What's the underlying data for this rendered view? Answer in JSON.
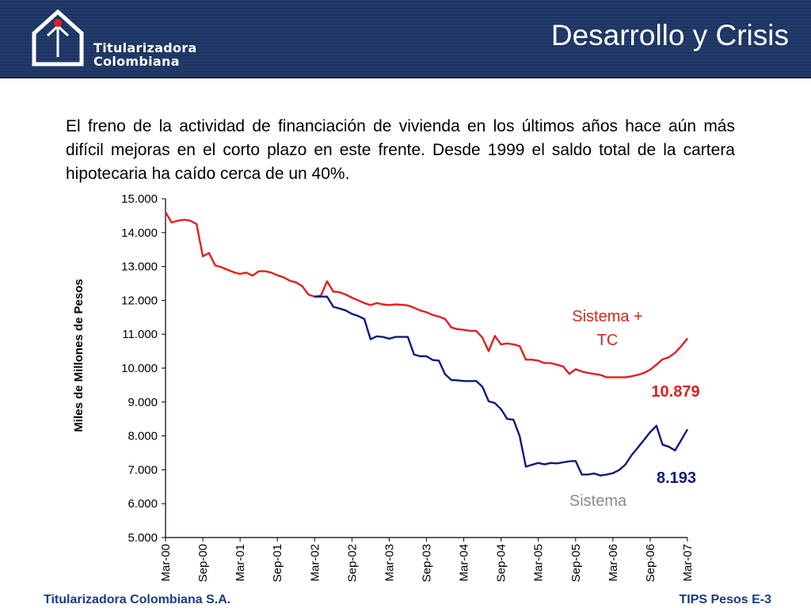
{
  "header": {
    "logo_line1": "Titularizadora",
    "logo_line2": "Colombiana",
    "title": "Desarrollo y Crisis",
    "logo_icon": "house-with-arrow-icon"
  },
  "intro_text": "El freno de la actividad de financiación de vivienda en los últimos años hace aún más difícil mejoras en el corto plazo en este frente. Desde 1999 el saldo total de la cartera hipotecaria ha caído cerca de un 40%.",
  "footer": {
    "left": "Titularizadora Colombiana S.A.",
    "right": "TIPS Pesos E-3"
  },
  "colors": {
    "header_bg": "#1c3564",
    "series_red": "#e0201c",
    "series_blue": "#0c1a7c",
    "footer_text": "#1c3a84",
    "label_grey": "#8c8c8c"
  },
  "chart_data": {
    "type": "line",
    "ylabel": "Miles de Millones de Pesos",
    "xlabel": "",
    "ylim": [
      5000,
      15000
    ],
    "y_ticks": [
      5000,
      6000,
      7000,
      8000,
      9000,
      10000,
      11000,
      12000,
      13000,
      14000,
      15000
    ],
    "y_tick_labels": [
      "5.000",
      "6.000",
      "7.000",
      "8.000",
      "9.000",
      "10.000",
      "11.000",
      "12.000",
      "13.000",
      "14.000",
      "15.000"
    ],
    "x_tick_labels": [
      "Mar-00",
      "Sep-00",
      "Mar-01",
      "Sep-01",
      "Mar-02",
      "Sep-02",
      "Mar-03",
      "Sep-03",
      "Mar-04",
      "Sep-04",
      "Mar-05",
      "Sep-05",
      "Mar-06",
      "Sep-06",
      "Mar-07"
    ],
    "x_range_months": [
      0,
      84
    ],
    "grid": false,
    "series": [
      {
        "name": "Sistema + TC",
        "label_lines": [
          "Sistema +",
          "TC"
        ],
        "end_value_label": "10.879",
        "color": "#e0201c",
        "points": [
          [
            0,
            14600
          ],
          [
            1,
            14300
          ],
          [
            2,
            14350
          ],
          [
            3,
            14380
          ],
          [
            4,
            14350
          ],
          [
            5,
            14250
          ],
          [
            6,
            13300
          ],
          [
            7,
            13400
          ],
          [
            8,
            13030
          ],
          [
            9,
            12980
          ],
          [
            10,
            12900
          ],
          [
            11,
            12830
          ],
          [
            12,
            12780
          ],
          [
            13,
            12820
          ],
          [
            14,
            12730
          ],
          [
            15,
            12860
          ],
          [
            16,
            12860
          ],
          [
            17,
            12820
          ],
          [
            18,
            12740
          ],
          [
            19,
            12680
          ],
          [
            20,
            12580
          ],
          [
            21,
            12530
          ],
          [
            22,
            12420
          ],
          [
            23,
            12170
          ],
          [
            24,
            12110
          ],
          [
            25,
            12140
          ],
          [
            26,
            12560
          ],
          [
            27,
            12260
          ],
          [
            28,
            12240
          ],
          [
            29,
            12170
          ],
          [
            30,
            12080
          ],
          [
            31,
            12000
          ],
          [
            32,
            11920
          ],
          [
            33,
            11860
          ],
          [
            34,
            11920
          ],
          [
            35,
            11880
          ],
          [
            36,
            11860
          ],
          [
            37,
            11880
          ],
          [
            38,
            11870
          ],
          [
            39,
            11850
          ],
          [
            40,
            11780
          ],
          [
            41,
            11700
          ],
          [
            42,
            11650
          ],
          [
            43,
            11570
          ],
          [
            44,
            11520
          ],
          [
            45,
            11450
          ],
          [
            46,
            11200
          ],
          [
            47,
            11150
          ],
          [
            48,
            11130
          ],
          [
            49,
            11100
          ],
          [
            50,
            11100
          ],
          [
            51,
            10900
          ],
          [
            52,
            10500
          ],
          [
            53,
            10950
          ],
          [
            54,
            10700
          ],
          [
            55,
            10730
          ],
          [
            56,
            10700
          ],
          [
            57,
            10650
          ],
          [
            58,
            10250
          ],
          [
            59,
            10250
          ],
          [
            60,
            10220
          ],
          [
            61,
            10150
          ],
          [
            62,
            10150
          ],
          [
            63,
            10100
          ],
          [
            64,
            10050
          ],
          [
            65,
            9830
          ],
          [
            66,
            9970
          ],
          [
            67,
            9900
          ],
          [
            68,
            9860
          ],
          [
            69,
            9830
          ],
          [
            70,
            9800
          ],
          [
            71,
            9730
          ],
          [
            72,
            9730
          ],
          [
            73,
            9730
          ],
          [
            74,
            9730
          ],
          [
            75,
            9760
          ],
          [
            76,
            9800
          ],
          [
            77,
            9860
          ],
          [
            78,
            9950
          ],
          [
            79,
            10100
          ],
          [
            80,
            10260
          ],
          [
            81,
            10320
          ],
          [
            82,
            10450
          ],
          [
            83,
            10650
          ],
          [
            84,
            10879
          ]
        ]
      },
      {
        "name": "Sistema",
        "label_lines": [
          "Sistema"
        ],
        "end_value_label": "8.193",
        "color": "#0c1a7c",
        "points": [
          [
            24,
            12110
          ],
          [
            25,
            12110
          ],
          [
            26,
            12110
          ],
          [
            27,
            11810
          ],
          [
            28,
            11760
          ],
          [
            29,
            11700
          ],
          [
            30,
            11600
          ],
          [
            31,
            11540
          ],
          [
            32,
            11450
          ],
          [
            33,
            10850
          ],
          [
            34,
            10940
          ],
          [
            35,
            10920
          ],
          [
            36,
            10870
          ],
          [
            37,
            10920
          ],
          [
            38,
            10920
          ],
          [
            39,
            10920
          ],
          [
            40,
            10400
          ],
          [
            41,
            10350
          ],
          [
            42,
            10350
          ],
          [
            43,
            10240
          ],
          [
            44,
            10220
          ],
          [
            45,
            9820
          ],
          [
            46,
            9650
          ],
          [
            47,
            9640
          ],
          [
            48,
            9620
          ],
          [
            49,
            9620
          ],
          [
            50,
            9620
          ],
          [
            51,
            9450
          ],
          [
            52,
            9020
          ],
          [
            53,
            8970
          ],
          [
            54,
            8790
          ],
          [
            55,
            8500
          ],
          [
            56,
            8480
          ],
          [
            57,
            7990
          ],
          [
            58,
            7090
          ],
          [
            59,
            7150
          ],
          [
            60,
            7200
          ],
          [
            61,
            7160
          ],
          [
            62,
            7200
          ],
          [
            63,
            7190
          ],
          [
            64,
            7220
          ],
          [
            65,
            7250
          ],
          [
            66,
            7260
          ],
          [
            67,
            6860
          ],
          [
            68,
            6860
          ],
          [
            69,
            6890
          ],
          [
            70,
            6830
          ],
          [
            71,
            6860
          ],
          [
            72,
            6900
          ],
          [
            73,
            6990
          ],
          [
            74,
            7150
          ],
          [
            75,
            7430
          ],
          [
            76,
            7650
          ],
          [
            77,
            7880
          ],
          [
            78,
            8110
          ],
          [
            79,
            8300
          ],
          [
            80,
            7740
          ],
          [
            81,
            7680
          ],
          [
            82,
            7570
          ],
          [
            83,
            7880
          ],
          [
            84,
            8193
          ]
        ]
      }
    ]
  }
}
